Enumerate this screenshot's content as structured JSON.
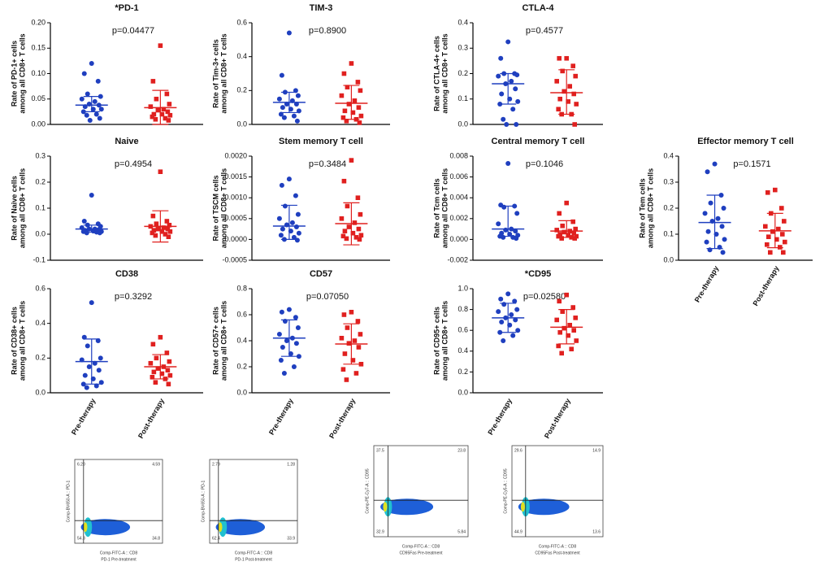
{
  "chart_data": [
    {
      "type": "scatter",
      "title": "*PD-1",
      "annotation": "p=0.04477",
      "ylabel": [
        "Rate of PD-1+ cells",
        "among all CD8+ T cells"
      ],
      "categories": [
        null,
        null
      ],
      "ylim": [
        0,
        0.2
      ],
      "yticks": [
        {
          "value": 0,
          "label": "0.00"
        },
        {
          "value": 0.05,
          "label": "0.05"
        },
        {
          "value": 0.1,
          "label": "0.10"
        },
        {
          "value": 0.15,
          "label": "0.15"
        },
        {
          "value": 0.2,
          "label": "0.20"
        }
      ],
      "series": [
        {
          "color": "#1f3fbf",
          "values": [
            0.12,
            0.1,
            0.085,
            0.06,
            0.055,
            0.05,
            0.045,
            0.04,
            0.038,
            0.035,
            0.03,
            0.03,
            0.025,
            0.02,
            0.018,
            0.012,
            0.008
          ],
          "mean": 0.038,
          "lower": 0.025,
          "upper": 0.055
        },
        {
          "color": "#e0201f",
          "values": [
            0.155,
            0.085,
            0.06,
            0.05,
            0.04,
            0.035,
            0.03,
            0.028,
            0.025,
            0.02,
            0.02,
            0.018,
            0.015,
            0.012,
            0.01,
            0.008
          ],
          "mean": 0.033,
          "lower": 0.0,
          "upper": 0.067
        }
      ]
    },
    {
      "type": "scatter",
      "title": "TIM-3",
      "annotation": "p=0.8900",
      "ylabel": [
        "Rate of Tim-3+ cells",
        "among all CD8+ T cells"
      ],
      "categories": [
        null,
        null
      ],
      "ylim": [
        0,
        0.6
      ],
      "yticks": [
        {
          "value": 0,
          "label": "0.0"
        },
        0.2,
        0.4,
        0.6
      ],
      "series": [
        {
          "color": "#1f3fbf",
          "values": [
            0.54,
            0.29,
            0.2,
            0.19,
            0.17,
            0.15,
            0.14,
            0.12,
            0.12,
            0.1,
            0.09,
            0.08,
            0.06,
            0.05,
            0.04,
            0.02
          ],
          "mean": 0.13,
          "lower": 0.07,
          "upper": 0.19
        },
        {
          "color": "#e0201f",
          "values": [
            0.36,
            0.3,
            0.25,
            0.22,
            0.2,
            0.17,
            0.14,
            0.12,
            0.1,
            0.08,
            0.07,
            0.05,
            0.04,
            0.03,
            0.02,
            0.01
          ],
          "mean": 0.125,
          "lower": 0.03,
          "upper": 0.23
        }
      ]
    },
    {
      "type": "scatter",
      "title": "CTLA-4",
      "annotation": "p=0.4577",
      "ylabel": [
        "Rate of CTLA-4+ cells",
        "among all CD8+ T cells"
      ],
      "categories": [
        null,
        null
      ],
      "ylim": [
        0,
        0.4
      ],
      "yticks": [
        {
          "value": 0,
          "label": "0.0"
        },
        0.1,
        0.2,
        0.3,
        0.4
      ],
      "series": [
        {
          "color": "#1f3fbf",
          "values": [
            0.325,
            0.26,
            0.2,
            0.2,
            0.195,
            0.19,
            0.17,
            0.16,
            0.14,
            0.12,
            0.1,
            0.09,
            0.08,
            0.06,
            0.02,
            0.0,
            0.0
          ],
          "mean": 0.16,
          "lower": 0.08,
          "upper": 0.2
        },
        {
          "color": "#e0201f",
          "values": [
            0.26,
            0.26,
            0.23,
            0.21,
            0.19,
            0.17,
            0.15,
            0.13,
            0.12,
            0.1,
            0.09,
            0.08,
            0.06,
            0.04,
            0.04,
            0.0
          ],
          "mean": 0.125,
          "lower": 0.04,
          "upper": 0.215
        }
      ]
    },
    {
      "type": "scatter",
      "title": "Naive",
      "annotation": "p=0.4954",
      "ylabel": [
        "Rate of Naive cells",
        "among all CD8+ T cells"
      ],
      "categories": [
        null,
        null
      ],
      "ylim": [
        -0.1,
        0.3
      ],
      "yticks": [
        -0.1,
        {
          "value": 0,
          "label": "0.0"
        },
        0.1,
        0.2,
        0.3
      ],
      "series": [
        {
          "color": "#1f3fbf",
          "values": [
            0.15,
            0.05,
            0.04,
            0.035,
            0.03,
            0.025,
            0.02,
            0.02,
            0.018,
            0.015,
            0.012,
            0.01,
            0.01,
            0.008,
            0.005,
            0.005
          ],
          "mean": 0.02,
          "lower": 0.008,
          "upper": 0.035
        },
        {
          "color": "#e0201f",
          "values": [
            0.24,
            0.07,
            0.05,
            0.04,
            0.035,
            0.03,
            0.025,
            0.02,
            0.02,
            0.015,
            0.01,
            0.01,
            0.005,
            0.0,
            -0.005,
            -0.01
          ],
          "mean": 0.03,
          "lower": -0.03,
          "upper": 0.09
        }
      ]
    },
    {
      "type": "scatter",
      "title": "Stem memory T cell",
      "annotation": "p=0.3484",
      "ylabel": [
        "Rate of TSCM cells",
        "among all CD8+ T cells"
      ],
      "categories": [
        null,
        null
      ],
      "ylim": [
        -0.0005,
        0.002
      ],
      "yticks": [
        -0.0005,
        {
          "value": 0,
          "label": "0.0000"
        },
        0.0005,
        {
          "value": 0.001,
          "label": "0.0010"
        },
        0.0015,
        {
          "value": 0.002,
          "label": "0.0020"
        }
      ],
      "series": [
        {
          "color": "#1f3fbf",
          "values": [
            0.00145,
            0.0013,
            0.00105,
            0.0008,
            0.0006,
            0.0005,
            0.0004,
            0.00035,
            0.0003,
            0.00025,
            0.0002,
            0.00015,
            0.0001,
            5e-05,
            0.0,
            -2e-05
          ],
          "mean": 0.00032,
          "lower": 0.0,
          "upper": 0.00082
        },
        {
          "color": "#e0201f",
          "values": [
            0.0019,
            0.0014,
            0.001,
            0.0008,
            0.0006,
            0.0005,
            0.0004,
            0.0003,
            0.00025,
            0.0002,
            0.00015,
            0.0001,
            8e-05,
            5e-05,
            2e-05,
            0.0
          ],
          "mean": 0.00038,
          "lower": -0.00013,
          "upper": 0.00088
        }
      ]
    },
    {
      "type": "scatter",
      "title": "Central memory T cell",
      "annotation": "p=0.1046",
      "ylabel": [
        "Rate of Tcm cells",
        "among all CD8+ T cells"
      ],
      "categories": [
        null,
        null
      ],
      "ylim": [
        -0.002,
        0.008
      ],
      "yticks": [
        -0.002,
        {
          "value": 0,
          "label": "0.000"
        },
        0.002,
        0.004,
        0.006,
        0.008
      ],
      "series": [
        {
          "color": "#1f3fbf",
          "values": [
            0.0073,
            0.0033,
            0.0032,
            0.0031,
            0.0025,
            0.0015,
            0.001,
            0.0009,
            0.0008,
            0.0006,
            0.0005,
            0.0004,
            0.0003,
            0.0002,
            0.0002,
            0.0001
          ],
          "mean": 0.001,
          "lower": 0.0003,
          "upper": 0.0032
        },
        {
          "color": "#e0201f",
          "values": [
            0.0035,
            0.0025,
            0.0017,
            0.0013,
            0.001,
            0.0009,
            0.0008,
            0.0007,
            0.0006,
            0.0005,
            0.0004,
            0.0003,
            0.0003,
            0.0002,
            0.0001,
            0.0001
          ],
          "mean": 0.0008,
          "lower": 0.0002,
          "upper": 0.0018
        }
      ]
    },
    {
      "type": "scatter",
      "title": "Effector memory T cell",
      "annotation": "p=0.1571",
      "ylabel": [
        "Rate of Tem cells",
        "among all CD8+ T cells"
      ],
      "categories": [
        "Pre-therapy",
        "Post-therapy"
      ],
      "ylim": [
        0,
        0.4
      ],
      "yticks": [
        {
          "value": 0,
          "label": "0.0"
        },
        0.1,
        0.2,
        0.3,
        0.4
      ],
      "series": [
        {
          "color": "#1f3fbf",
          "values": [
            0.37,
            0.34,
            0.25,
            0.22,
            0.2,
            0.18,
            0.16,
            0.15,
            0.13,
            0.11,
            0.1,
            0.08,
            0.07,
            0.05,
            0.04,
            0.03
          ],
          "mean": 0.145,
          "lower": 0.045,
          "upper": 0.25
        },
        {
          "color": "#e0201f",
          "values": [
            0.27,
            0.26,
            0.2,
            0.18,
            0.15,
            0.13,
            0.12,
            0.11,
            0.1,
            0.09,
            0.08,
            0.07,
            0.06,
            0.05,
            0.03,
            0.03
          ],
          "mean": 0.113,
          "lower": 0.048,
          "upper": 0.18
        }
      ]
    },
    {
      "type": "scatter",
      "title": "CD38",
      "annotation": "p=0.3292",
      "ylabel": [
        "Rate of CD38+ cells",
        "among all CD8+ T cells"
      ],
      "categories": [
        "Pre-therapy",
        "Post-therapy"
      ],
      "ylim": [
        0,
        0.6
      ],
      "yticks": [
        {
          "value": 0,
          "label": "0.0"
        },
        0.2,
        0.4,
        0.6
      ],
      "series": [
        {
          "color": "#1f3fbf",
          "values": [
            0.52,
            0.32,
            0.3,
            0.27,
            0.2,
            0.19,
            0.17,
            0.15,
            0.13,
            0.1,
            0.08,
            0.06,
            0.05,
            0.04,
            0.03
          ],
          "mean": 0.18,
          "lower": 0.05,
          "upper": 0.31
        },
        {
          "color": "#e0201f",
          "values": [
            0.32,
            0.28,
            0.23,
            0.2,
            0.18,
            0.17,
            0.15,
            0.14,
            0.13,
            0.12,
            0.11,
            0.1,
            0.09,
            0.08,
            0.06,
            0.05
          ],
          "mean": 0.15,
          "lower": 0.08,
          "upper": 0.22
        }
      ]
    },
    {
      "type": "scatter",
      "title": "CD57",
      "annotation": "p=0.07050",
      "ylabel": [
        "Rate of CD57+ cells",
        "among all CD8+ T cells"
      ],
      "categories": [
        "Pre-therapy",
        "Post-therapy"
      ],
      "ylim": [
        0,
        0.8
      ],
      "yticks": [
        {
          "value": 0,
          "label": "0.0"
        },
        0.2,
        0.4,
        0.6,
        0.8
      ],
      "series": [
        {
          "color": "#1f3fbf",
          "values": [
            0.64,
            0.62,
            0.58,
            0.55,
            0.5,
            0.45,
            0.42,
            0.4,
            0.38,
            0.35,
            0.3,
            0.28,
            0.25,
            0.2,
            0.15
          ],
          "mean": 0.42,
          "lower": 0.28,
          "upper": 0.56
        },
        {
          "color": "#e0201f",
          "values": [
            0.62,
            0.6,
            0.55,
            0.5,
            0.45,
            0.42,
            0.4,
            0.38,
            0.35,
            0.3,
            0.25,
            0.22,
            0.18,
            0.15,
            0.1
          ],
          "mean": 0.375,
          "lower": 0.22,
          "upper": 0.53
        }
      ]
    },
    {
      "type": "scatter",
      "title": "*CD95",
      "annotation": "p=0.02580",
      "ylabel": [
        "Rate of CD95+ cells",
        "among all CD8+ T cells"
      ],
      "categories": [
        "Pre-therapy",
        "Post-therapy"
      ],
      "ylim": [
        0,
        1.0
      ],
      "yticks": [
        {
          "value": 0,
          "label": "0.0"
        },
        0.2,
        0.4,
        0.6,
        0.8,
        {
          "value": 1.0,
          "label": "1.0"
        }
      ],
      "series": [
        {
          "color": "#1f3fbf",
          "values": [
            0.95,
            0.9,
            0.88,
            0.85,
            0.8,
            0.78,
            0.75,
            0.72,
            0.7,
            0.68,
            0.65,
            0.6,
            0.58,
            0.55,
            0.5
          ],
          "mean": 0.72,
          "lower": 0.58,
          "upper": 0.86
        },
        {
          "color": "#e0201f",
          "values": [
            0.94,
            0.88,
            0.82,
            0.78,
            0.72,
            0.7,
            0.65,
            0.62,
            0.6,
            0.58,
            0.55,
            0.5,
            0.45,
            0.42,
            0.38
          ],
          "mean": 0.63,
          "lower": 0.47,
          "upper": 0.8
        }
      ]
    }
  ],
  "flow_plots": [
    {
      "title": "PD-1 Pre-treatment",
      "x_label": "Comp-FITC-A :: CD8",
      "y_label": "Comp-BV650-A :: PD-1",
      "quadrants": [
        "6.20",
        "4.59",
        "54.3",
        "34.8"
      ]
    },
    {
      "title": "PD-1 Post-treatment",
      "x_label": "Comp-FITC-A :: CD8",
      "y_label": "Comp-BV650-A :: PD-1",
      "quadrants": [
        "2.79",
        "1.28",
        "62.4",
        "33.9"
      ]
    },
    {
      "title": "CD95Fas Pre-treatment",
      "x_label": "Comp-FITC-A :: CD8",
      "y_label": "Comp-PE-Cy7-A :: CD95",
      "quadrants": [
        "37.5",
        "23.8",
        "32.9",
        "5.84"
      ]
    },
    {
      "title": "CD95Fas Post-treatment",
      "x_label": "Comp-FITC-A :: CD8",
      "y_label": "Comp-PE-Cy5-A :: CD95",
      "quadrants": [
        "29.6",
        "14.9",
        "44.9",
        "13.6"
      ]
    }
  ]
}
